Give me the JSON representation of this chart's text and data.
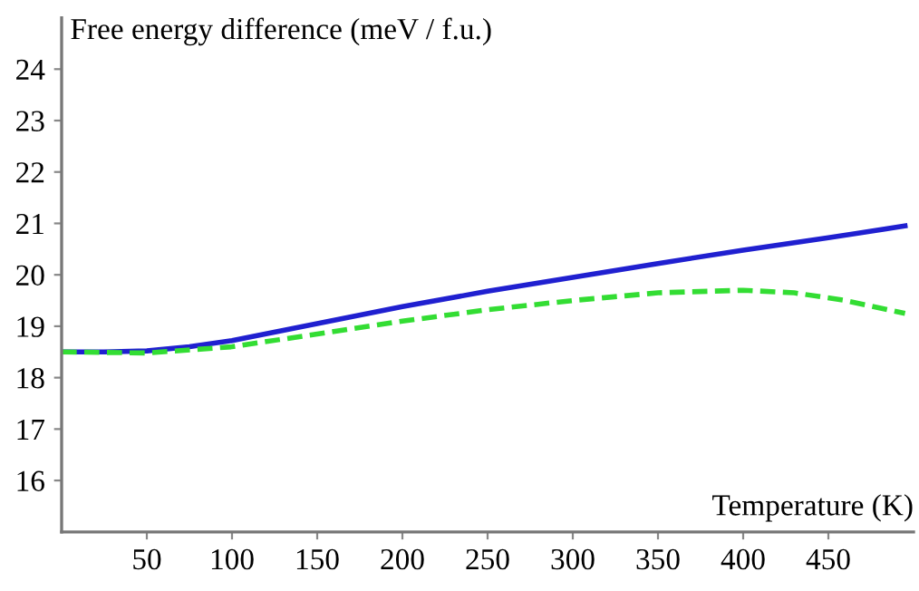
{
  "chart_data": {
    "type": "line",
    "xlabel": "Temperature (K)",
    "ylabel": "Free energy difference (meV / f.u.)",
    "xlim": [
      0,
      500
    ],
    "ylim": [
      15,
      25
    ],
    "xticks": [
      50,
      100,
      150,
      200,
      250,
      300,
      350,
      400,
      450
    ],
    "yticks": [
      16,
      17,
      18,
      19,
      20,
      21,
      22,
      23,
      24
    ],
    "grid": false,
    "legend": false,
    "series": [
      {
        "color": "#2020d0",
        "line_style": "solid",
        "x": [
          0,
          25,
          50,
          75,
          100,
          150,
          200,
          250,
          300,
          350,
          400,
          450,
          495
        ],
        "values": [
          18.5,
          18.5,
          18.52,
          18.6,
          18.72,
          19.05,
          19.38,
          19.68,
          19.95,
          20.22,
          20.48,
          20.72,
          20.95
        ]
      },
      {
        "color": "#33dd33",
        "line_style": "dashed",
        "x": [
          0,
          50,
          100,
          150,
          200,
          250,
          300,
          350,
          400,
          430,
          460,
          495
        ],
        "values": [
          18.5,
          18.48,
          18.6,
          18.85,
          19.1,
          19.32,
          19.5,
          19.65,
          19.7,
          19.65,
          19.5,
          19.25
        ]
      }
    ]
  }
}
